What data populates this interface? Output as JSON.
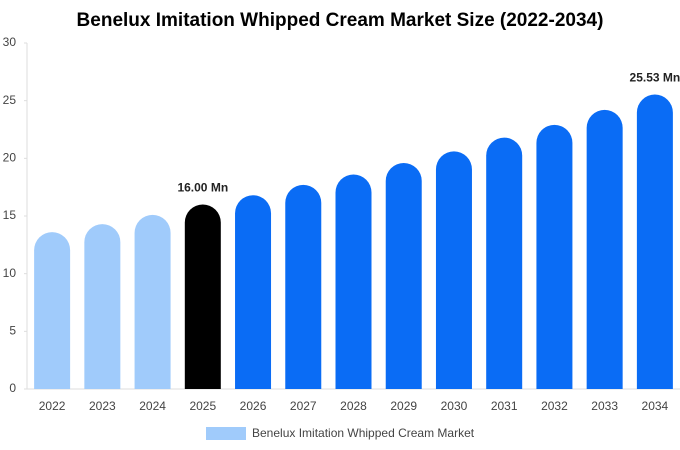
{
  "chart_data": {
    "type": "bar",
    "title": "Benelux Imitation Whipped Cream Market Size (2022-2034)",
    "categories": [
      "2022",
      "2023",
      "2024",
      "2025",
      "2026",
      "2027",
      "2028",
      "2029",
      "2030",
      "2031",
      "2032",
      "2033",
      "2034"
    ],
    "series": [
      {
        "name": "Benelux Imitation Whipped Cream Market",
        "color": "#a0cbfb",
        "values": [
          13.6,
          14.3,
          15.1,
          16.0,
          16.8,
          17.7,
          18.6,
          19.6,
          20.6,
          21.8,
          22.9,
          24.2,
          25.53
        ],
        "value_labels": [
          null,
          null,
          null,
          "16.00 Mn",
          null,
          null,
          null,
          null,
          null,
          null,
          null,
          null,
          "25.53 Mn"
        ],
        "colors": [
          "#a0cbfb",
          "#a0cbfb",
          "#a0cbfb",
          "#000000",
          "#0a6cf5",
          "#0a6cf5",
          "#0a6cf5",
          "#0a6cf5",
          "#0a6cf5",
          "#0a6cf5",
          "#0a6cf5",
          "#0a6cf5",
          "#0a6cf5"
        ]
      }
    ],
    "ylim": [
      0,
      30
    ],
    "yticks": [
      0,
      5,
      10,
      15,
      20,
      25,
      30
    ],
    "grid": false
  }
}
